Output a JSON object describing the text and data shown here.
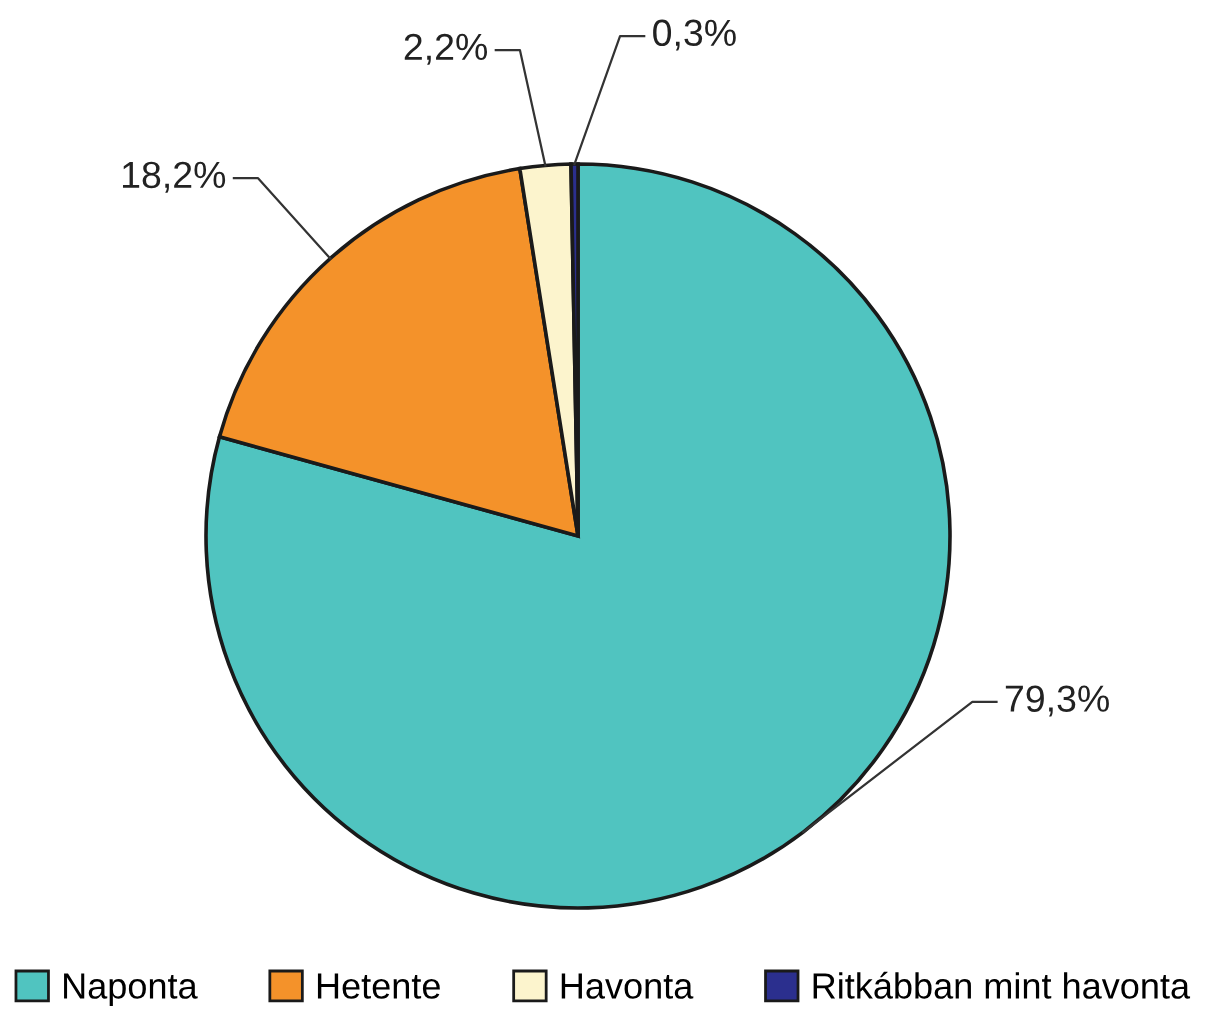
{
  "chart_data": {
    "type": "pie",
    "categories": [
      "Naponta",
      "Hetente",
      "Havonta",
      "Ritkábban mint havonta"
    ],
    "values": [
      79.3,
      18.2,
      2.2,
      0.3
    ],
    "colors": [
      "#50c4c0",
      "#f4922a",
      "#fcf4cd",
      "#2b2f8e"
    ],
    "value_labels": [
      "79,3%",
      "18,2%",
      "2,2%",
      "0,3%"
    ],
    "legend": "bottom"
  }
}
